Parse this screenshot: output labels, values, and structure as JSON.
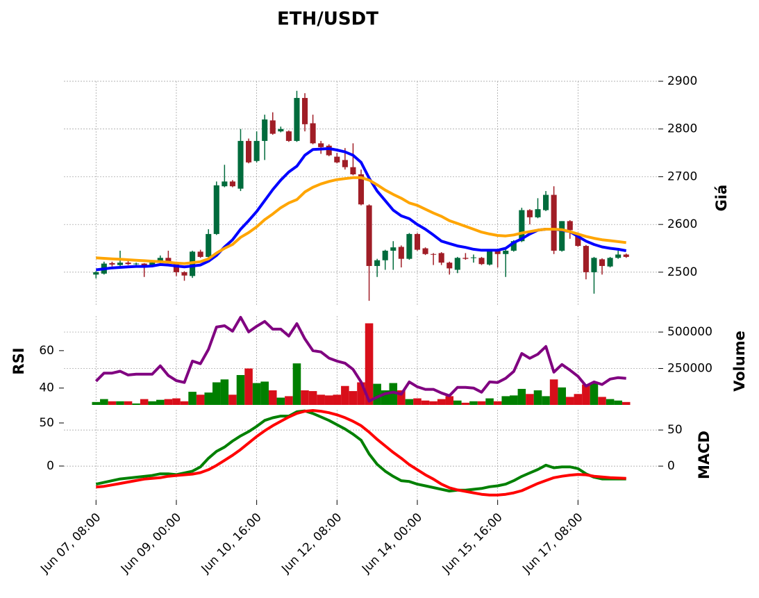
{
  "chart_data": [
    {
      "type": "candlestick",
      "title": "ETH/USDT",
      "ylabel": "Giá",
      "yaxis_side": "right",
      "grid": "y",
      "ylim": [
        2430,
        2900
      ],
      "yticks": [
        2500,
        2600,
        2700,
        2800,
        2900
      ],
      "up_color": "#006b3c",
      "down_color": "#a01d26",
      "open": [
        2495,
        2497,
        2519,
        2515,
        2520,
        2517,
        2518,
        2512,
        2520,
        2530,
        2520,
        2500,
        2492,
        2543,
        2532,
        2580,
        2680,
        2690,
        2675,
        2775,
        2733,
        2775,
        2818,
        2795,
        2795,
        2775,
        2865,
        2812,
        2770,
        2765,
        2742,
        2735,
        2720,
        2705,
        2640,
        2513,
        2525,
        2545,
        2553,
        2528,
        2580,
        2550,
        2538,
        2540,
        2520,
        2505,
        2530,
        2530,
        2530,
        2516,
        2545,
        2538,
        2545,
        2565,
        2630,
        2615,
        2630,
        2662,
        2545,
        2607,
        2580,
        2555,
        2500,
        2527,
        2512,
        2530,
        2537
      ],
      "high": [
        2502,
        2522,
        2522,
        2545,
        2523,
        2520,
        2519,
        2522,
        2535,
        2545,
        2522,
        2502,
        2545,
        2547,
        2590,
        2690,
        2725,
        2693,
        2800,
        2780,
        2795,
        2830,
        2835,
        2805,
        2797,
        2880,
        2875,
        2830,
        2775,
        2768,
        2750,
        2760,
        2770,
        2715,
        2642,
        2528,
        2547,
        2565,
        2556,
        2582,
        2582,
        2552,
        2540,
        2542,
        2522,
        2532,
        2540,
        2537,
        2532,
        2547,
        2547,
        2547,
        2567,
        2635,
        2632,
        2655,
        2670,
        2680,
        2607,
        2609,
        2582,
        2557,
        2532,
        2529,
        2532,
        2545,
        2539
      ],
      "low": [
        2487,
        2495,
        2512,
        2512,
        2515,
        2515,
        2490,
        2510,
        2518,
        2518,
        2492,
        2482,
        2488,
        2530,
        2530,
        2578,
        2678,
        2678,
        2670,
        2728,
        2730,
        2735,
        2788,
        2793,
        2773,
        2773,
        2795,
        2768,
        2748,
        2743,
        2728,
        2715,
        2703,
        2640,
        2440,
        2490,
        2505,
        2505,
        2510,
        2526,
        2545,
        2536,
        2515,
        2515,
        2495,
        2498,
        2526,
        2520,
        2515,
        2514,
        2510,
        2490,
        2543,
        2563,
        2600,
        2613,
        2628,
        2538,
        2543,
        2570,
        2553,
        2485,
        2455,
        2495,
        2510,
        2528,
        2530
      ],
      "close": [
        2500,
        2518,
        2516,
        2520,
        2517,
        2518,
        2512,
        2520,
        2530,
        2520,
        2500,
        2493,
        2543,
        2532,
        2580,
        2682,
        2690,
        2680,
        2775,
        2730,
        2775,
        2820,
        2790,
        2800,
        2775,
        2865,
        2810,
        2770,
        2762,
        2745,
        2730,
        2720,
        2705,
        2642,
        2513,
        2525,
        2545,
        2552,
        2528,
        2580,
        2547,
        2538,
        2537,
        2520,
        2508,
        2530,
        2528,
        2531,
        2517,
        2545,
        2538,
        2545,
        2565,
        2630,
        2615,
        2632,
        2662,
        2545,
        2607,
        2588,
        2555,
        2500,
        2530,
        2513,
        2530,
        2537,
        2532
      ],
      "lines": [
        {
          "color": "#0000ff",
          "values": [
            2505,
            2507,
            2509,
            2510,
            2511,
            2512,
            2512,
            2513,
            2516,
            2515,
            2513,
            2511,
            2513,
            2515,
            2523,
            2535,
            2553,
            2568,
            2590,
            2608,
            2627,
            2650,
            2673,
            2693,
            2710,
            2722,
            2745,
            2757,
            2758,
            2759,
            2756,
            2752,
            2745,
            2730,
            2697,
            2670,
            2650,
            2630,
            2618,
            2612,
            2600,
            2590,
            2578,
            2565,
            2560,
            2555,
            2552,
            2548,
            2546,
            2546,
            2546,
            2550,
            2562,
            2570,
            2580,
            2588,
            2590,
            2590,
            2588,
            2585,
            2575,
            2565,
            2558,
            2553,
            2550,
            2548,
            2545
          ]
        },
        {
          "color": "#ffa500",
          "values": [
            2530,
            2529,
            2528,
            2527,
            2526,
            2525,
            2524,
            2523,
            2522,
            2521,
            2519,
            2518,
            2520,
            2522,
            2528,
            2540,
            2550,
            2558,
            2573,
            2583,
            2595,
            2610,
            2622,
            2635,
            2645,
            2652,
            2668,
            2678,
            2685,
            2690,
            2694,
            2696,
            2698,
            2698,
            2693,
            2683,
            2672,
            2663,
            2655,
            2645,
            2640,
            2632,
            2624,
            2617,
            2608,
            2602,
            2596,
            2590,
            2584,
            2580,
            2577,
            2576,
            2578,
            2582,
            2585,
            2588,
            2590,
            2590,
            2589,
            2585,
            2580,
            2575,
            2571,
            2568,
            2566,
            2564,
            2562
          ]
        }
      ]
    },
    {
      "type": "bar",
      "ylabel": "RSI",
      "y2label": "Volume",
      "grid": "y2",
      "ylim": [
        31,
        78.5
      ],
      "yticks": [
        40,
        60
      ],
      "y2lim": [
        0,
        610000
      ],
      "y2ticks": [
        250000,
        500000
      ],
      "up_color": "#007f00",
      "down_color": "#d80f1a",
      "volume": [
        20000,
        40000,
        25000,
        25000,
        25000,
        10000,
        40000,
        25000,
        35000,
        40000,
        45000,
        25000,
        90000,
        70000,
        85000,
        155000,
        175000,
        70000,
        205000,
        250000,
        150000,
        160000,
        100000,
        50000,
        60000,
        285000,
        100000,
        95000,
        70000,
        65000,
        70000,
        130000,
        95000,
        155000,
        560000,
        145000,
        100000,
        150000,
        100000,
        40000,
        45000,
        30000,
        25000,
        40000,
        60000,
        30000,
        15000,
        25000,
        25000,
        45000,
        25000,
        60000,
        65000,
        110000,
        75000,
        100000,
        60000,
        175000,
        120000,
        55000,
        75000,
        140000,
        150000,
        55000,
        40000,
        30000,
        20000
      ],
      "lines": [
        {
          "color": "#800080",
          "values": [
            43.7,
            48,
            48,
            49,
            47,
            47.4,
            47.4,
            47.4,
            51.9,
            46.7,
            44,
            43,
            54.4,
            53,
            60.7,
            72.6,
            73.3,
            70.4,
            77.8,
            70,
            73,
            75.6,
            71.5,
            71.5,
            67.8,
            74.4,
            66.3,
            60,
            59.3,
            56,
            54.4,
            53.3,
            50,
            43.3,
            33,
            35.2,
            37,
            37.8,
            36.7,
            43.3,
            40.7,
            39.3,
            39.3,
            37.4,
            35.9,
            40.4,
            40.4,
            40,
            37.8,
            43.3,
            43,
            45.2,
            48.9,
            58.5,
            55.9,
            58.1,
            62.2,
            48.5,
            52.6,
            49.6,
            46.3,
            41.1,
            43.3,
            41.9,
            44.8,
            45.6,
            45.2
          ]
        }
      ]
    },
    {
      "type": "line",
      "ylabel": "MACD",
      "grid": "y2",
      "ylim": [
        -39.5,
        65.3
      ],
      "yticks": [
        0,
        50
      ],
      "y2lim": [
        -47,
        78
      ],
      "y2ticks": [
        0,
        50
      ],
      "xlim": [
        -4,
        70
      ],
      "xticks": [
        {
          "value": 0,
          "label": "Jun 07, 08:00"
        },
        {
          "value": 10,
          "label": "Jun 09, 00:00"
        },
        {
          "value": 20,
          "label": "Jun 10, 16:00"
        },
        {
          "value": 30,
          "label": "Jun 12, 08:00"
        },
        {
          "value": 40,
          "label": "Jun 14, 00:00"
        },
        {
          "value": 50,
          "label": "Jun 15, 16:00"
        },
        {
          "value": 60,
          "label": "Jun 17, 08:00"
        }
      ],
      "lines": [
        {
          "color": "#008000",
          "values": [
            -21,
            -19,
            -17,
            -15,
            -14,
            -13,
            -12,
            -11,
            -9,
            -9,
            -10,
            -8,
            -6,
            -1,
            9,
            17,
            22,
            29,
            35,
            40,
            46,
            53,
            56,
            58,
            58,
            63,
            64,
            61,
            57,
            53,
            48,
            43,
            37,
            30,
            14,
            2,
            -6,
            -12,
            -17,
            -18,
            -21,
            -23,
            -25,
            -27,
            -29,
            -28,
            -28,
            -27,
            -26,
            -24,
            -23,
            -21,
            -17,
            -12,
            -8,
            -4,
            1,
            -2,
            -1,
            -1,
            -3,
            -9,
            -13,
            -15,
            -15,
            -15,
            -15
          ]
        },
        {
          "color": "#ff0000",
          "axis": "y2",
          "values": [
            -29,
            -28,
            -26,
            -24,
            -22,
            -20,
            -18,
            -17,
            -16,
            -14,
            -13,
            -12,
            -11,
            -9,
            -5,
            1,
            8,
            15,
            23,
            32,
            41,
            49,
            56,
            62,
            68,
            73,
            76,
            77,
            76,
            74,
            71,
            67,
            62,
            56,
            47,
            37,
            28,
            19,
            11,
            2,
            -5,
            -12,
            -18,
            -25,
            -30,
            -33,
            -35,
            -37,
            -39,
            -40,
            -40,
            -39,
            -37,
            -34,
            -29,
            -24,
            -20,
            -16,
            -14,
            -12.5,
            -11.5,
            -12,
            -14,
            -15,
            -16,
            -16.5,
            -17
          ]
        }
      ]
    }
  ]
}
